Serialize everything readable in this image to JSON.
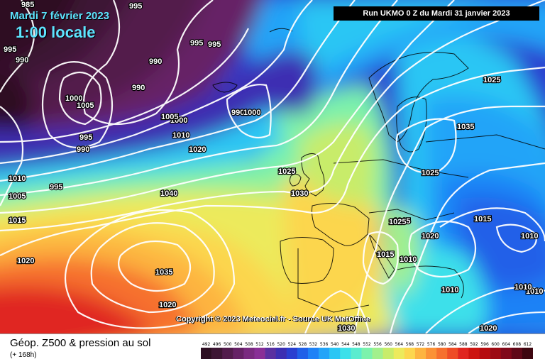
{
  "header": {
    "date": "Mardi 7 février 2023",
    "time": "1:00 locale",
    "run": "Run UKMO 0 Z du Mardi 31 janvier 2023"
  },
  "footer": {
    "parameter": "Géop. Z500 & pression au sol",
    "lead": "(+ 168h)",
    "copyright": "Copyright © 2023 Meteociel.fr - Source UK MetOffice"
  },
  "legend": {
    "ticks": [
      "492",
      "496",
      "500",
      "504",
      "508",
      "512",
      "516",
      "520",
      "524",
      "528",
      "532",
      "536",
      "540",
      "544",
      "548",
      "552",
      "556",
      "560",
      "564",
      "568",
      "572",
      "576",
      "580",
      "584",
      "588",
      "592",
      "596",
      "600",
      "604",
      "608",
      "612"
    ],
    "colors": [
      "#2d0f22",
      "#3d1634",
      "#521c4c",
      "#662266",
      "#7a2a80",
      "#892f96",
      "#5a30a0",
      "#3c2fb2",
      "#2a3fd0",
      "#2060e8",
      "#1f82f6",
      "#24a4f8",
      "#2bc6f4",
      "#3ce0ea",
      "#5aeccf",
      "#7cf2ac",
      "#a2f08c",
      "#c8ec6a",
      "#ecea5c",
      "#fcd64e",
      "#fdb440",
      "#fb9236",
      "#f6702e",
      "#ee4c26",
      "#e02620",
      "#cc1410",
      "#b60c10",
      "#9c0a14",
      "#80081a",
      "#600818",
      "#3e0610"
    ]
  },
  "isobars": {
    "labels": [
      "985",
      "990",
      "995",
      "995",
      "990",
      "995",
      "995",
      "990",
      "1000",
      "1005",
      "1000",
      "995",
      "990",
      "1005",
      "1010",
      "1015",
      "995",
      "990",
      "1000",
      "1005",
      "1010",
      "1020",
      "1025",
      "1030",
      "1040",
      "1035",
      "1020",
      "1030",
      "1035",
      "1025",
      "1025",
      "1015",
      "1015",
      "1010",
      "1015",
      "1010",
      "1020",
      "1010",
      "1010",
      "1020",
      "1020",
      "1010",
      "1025"
    ]
  },
  "colors": {
    "accent_text": "#5ee4ff",
    "isobar": "#ffffff",
    "coastline": "#000000"
  }
}
